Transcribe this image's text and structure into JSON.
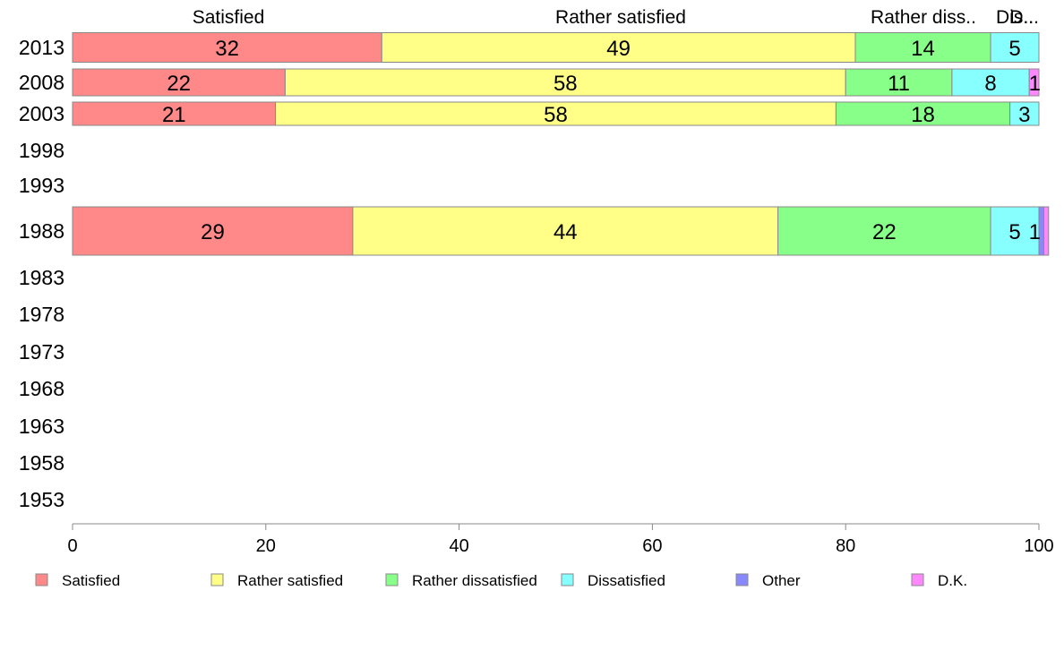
{
  "chart_data": {
    "type": "bar",
    "orientation": "horizontal",
    "stacked": true,
    "categories": [
      "2013",
      "2008",
      "2003",
      "1998",
      "1993",
      "1988",
      "1983",
      "1978",
      "1973",
      "1968",
      "1963",
      "1958",
      "1953"
    ],
    "series": [
      {
        "name": "Satisfied",
        "color": "#ff8888",
        "values": [
          32,
          22,
          21,
          null,
          null,
          29,
          null,
          null,
          null,
          null,
          null,
          null,
          null
        ]
      },
      {
        "name": "Rather satisfied",
        "color": "#ffff88",
        "values": [
          49,
          58,
          58,
          null,
          null,
          44,
          null,
          null,
          null,
          null,
          null,
          null,
          null
        ]
      },
      {
        "name": "Rather dissatisfied",
        "color": "#88ff88",
        "values": [
          14,
          11,
          18,
          null,
          null,
          22,
          null,
          null,
          null,
          null,
          null,
          null,
          null
        ]
      },
      {
        "name": "Dissatisfied",
        "color": "#88ffff",
        "values": [
          5,
          8,
          3,
          null,
          null,
          5,
          null,
          null,
          null,
          null,
          null,
          null,
          null
        ]
      },
      {
        "name": "Other",
        "color": "#8888ff",
        "values": [
          0,
          0,
          0,
          null,
          null,
          0.5,
          null,
          null,
          null,
          null,
          null,
          null,
          null
        ]
      },
      {
        "name": "D.K.",
        "color": "#ff88ff",
        "values": [
          0,
          1,
          0,
          null,
          null,
          0.5,
          null,
          null,
          null,
          null,
          null,
          null,
          null
        ]
      }
    ],
    "bar_labels": [
      [
        "32",
        "49",
        "14",
        "5",
        "",
        ""
      ],
      [
        "22",
        "58",
        "11",
        "8",
        "",
        "1"
      ],
      [
        "21",
        "58",
        "18",
        "3",
        "",
        ""
      ],
      null,
      null,
      [
        "29",
        "44",
        "22",
        "5",
        "",
        "1"
      ],
      null,
      null,
      null,
      null,
      null,
      null,
      null
    ],
    "top_labels": [
      "Satisfied",
      "Rather satisfied",
      "Rather diss..",
      "Dis..",
      "D..."
    ],
    "xlim": [
      0,
      100
    ],
    "xticks": [
      0,
      20,
      40,
      60,
      80,
      100
    ],
    "grid": false,
    "legend_position": "bottom"
  }
}
